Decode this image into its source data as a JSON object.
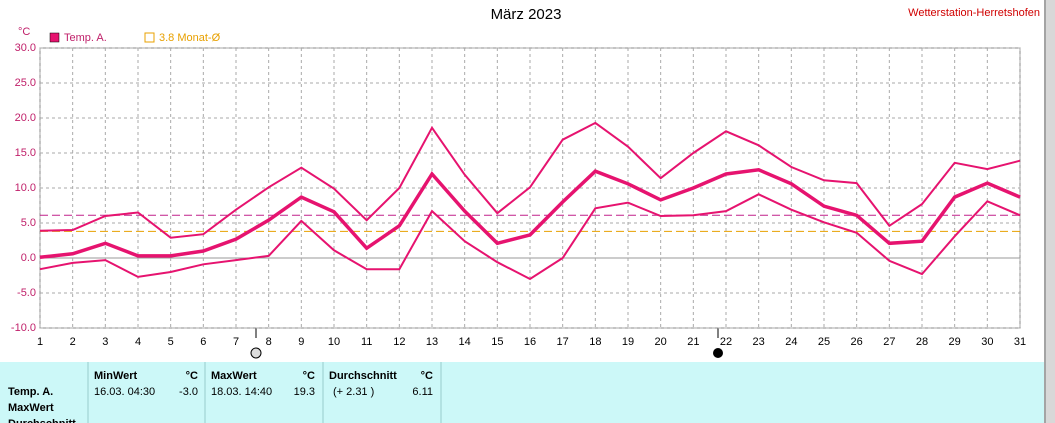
{
  "chart_data": {
    "type": "line",
    "title": "März 2023",
    "source": "Wetterstation-Herretshofen",
    "y_unit": "°C",
    "x": [
      1,
      2,
      3,
      4,
      5,
      6,
      7,
      8,
      9,
      10,
      11,
      12,
      13,
      14,
      15,
      16,
      17,
      18,
      19,
      20,
      21,
      22,
      23,
      24,
      25,
      26,
      27,
      28,
      29,
      30,
      31
    ],
    "xlim": [
      1,
      31
    ],
    "xticks": [
      1,
      2,
      3,
      4,
      5,
      6,
      7,
      8,
      9,
      10,
      11,
      12,
      13,
      14,
      15,
      16,
      17,
      18,
      19,
      20,
      21,
      22,
      23,
      24,
      25,
      26,
      27,
      28,
      29,
      30,
      31
    ],
    "ylim": [
      -10,
      30
    ],
    "yticks": [
      {
        "value": -10,
        "label": "-10.0"
      },
      {
        "value": -5,
        "label": "-5.0"
      },
      {
        "value": 0,
        "label": "0.0"
      },
      {
        "value": 5,
        "label": "5.0"
      },
      {
        "value": 10,
        "label": "10.0"
      },
      {
        "value": 15,
        "label": "15.0"
      },
      {
        "value": 20,
        "label": "20.0"
      },
      {
        "value": 25,
        "label": "25.0"
      },
      {
        "value": 30,
        "label": "30.0"
      }
    ],
    "grid": true,
    "series": [
      {
        "name": "Temp. A.",
        "color": "#e6136f",
        "values": [
          0.1,
          0.6,
          2.1,
          0.3,
          0.3,
          1.0,
          2.7,
          5.4,
          8.7,
          6.6,
          1.4,
          4.6,
          12.0,
          6.7,
          2.1,
          3.3,
          8.0,
          12.4,
          10.6,
          8.3,
          10.0,
          12.0,
          12.6,
          10.6,
          7.4,
          6.1,
          2.1,
          2.4,
          8.7,
          10.7,
          8.7
        ],
        "high": [
          3.9,
          4.0,
          6.0,
          6.5,
          2.9,
          3.4,
          6.9,
          10.1,
          12.9,
          9.9,
          5.4,
          10.0,
          18.6,
          11.9,
          6.4,
          10.1,
          16.9,
          19.3,
          15.9,
          11.4,
          15.0,
          18.1,
          16.1,
          13.0,
          11.1,
          10.7,
          4.6,
          7.7,
          13.6,
          12.7,
          13.9
        ],
        "low": [
          -1.6,
          -0.7,
          -0.3,
          -2.7,
          -2.0,
          -0.9,
          -0.3,
          0.3,
          5.3,
          1.1,
          -1.6,
          -1.6,
          6.7,
          2.4,
          -0.6,
          -3.0,
          0.0,
          7.1,
          7.9,
          6.0,
          6.1,
          6.7,
          9.1,
          6.9,
          5.1,
          3.6,
          -0.4,
          -2.3,
          3.1,
          8.1,
          6.1
        ]
      }
    ],
    "reference_lines": [
      {
        "label": "3.8 Monat-Ø",
        "value": 3.8,
        "color": "#e8a000"
      },
      {
        "value": 6.11,
        "color": "#c0208a"
      }
    ]
  },
  "table": {
    "row_labels": [
      "Temp. A.",
      "MaxWert",
      "Durchschnitt"
    ],
    "columns": [
      {
        "header": "MinWert",
        "unit": "°C",
        "cells": [
          "16.03.  04:30",
          "-3.0"
        ]
      },
      {
        "header": "MaxWert",
        "unit": "°C",
        "cells": [
          "18.03.  14:40",
          "19.3"
        ]
      },
      {
        "header": "Durchschnitt",
        "unit": "°C",
        "cells": [
          "(+ 2.31 )",
          "6.11"
        ]
      }
    ]
  }
}
